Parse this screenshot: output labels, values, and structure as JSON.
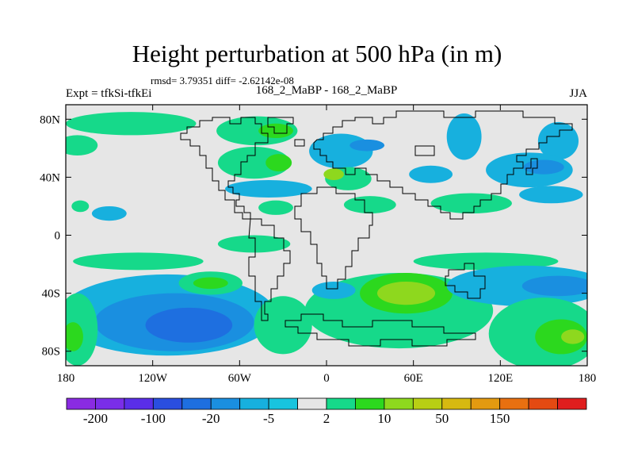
{
  "title": "Height perturbation at 500 hPa (in m)",
  "stats": "rmsd= 3.79351 diff= -2.62142e-08",
  "left_label": "Expt = tfkSi-tfkEi",
  "center_label": "168_2_MaBP - 168_2_MaBP",
  "right_label": "JJA",
  "chart_data": {
    "type": "heatmap",
    "title": "Height perturbation at 500 hPa (in m)",
    "xlabel": "",
    "ylabel": "",
    "xlim": [
      -180,
      180
    ],
    "ylim": [
      -90,
      90
    ],
    "x_ticks": [
      {
        "value": -180,
        "label": "180"
      },
      {
        "value": -120,
        "label": "120W"
      },
      {
        "value": -60,
        "label": "60W"
      },
      {
        "value": 0,
        "label": "0"
      },
      {
        "value": 60,
        "label": "60E"
      },
      {
        "value": 120,
        "label": "120E"
      },
      {
        "value": 180,
        "label": "180"
      }
    ],
    "y_ticks": [
      {
        "value": 80,
        "label": "80N"
      },
      {
        "value": 40,
        "label": "40N"
      },
      {
        "value": 0,
        "label": "0"
      },
      {
        "value": -40,
        "label": "40S"
      },
      {
        "value": -80,
        "label": "80S"
      }
    ],
    "colorbar": {
      "colors": [
        "#8a2be2",
        "#7a2ee8",
        "#5a2ee8",
        "#2a4ee0",
        "#1e6fe0",
        "#1a8fe0",
        "#17b0de",
        "#18c4de",
        "#e6e6e6",
        "#16d98a",
        "#2cd81e",
        "#8ed81e",
        "#b8cf14",
        "#d7b910",
        "#e39a10",
        "#e87010",
        "#e44a12",
        "#e01e1e"
      ],
      "labels": [
        {
          "value": -200,
          "label": "-200",
          "after_box": 1
        },
        {
          "value": -100,
          "label": "-100",
          "after_box": 3
        },
        {
          "value": -20,
          "label": "-20",
          "after_box": 5
        },
        {
          "value": -5,
          "label": "-5",
          "after_box": 7
        },
        {
          "value": 2,
          "label": "2",
          "after_box": 9
        },
        {
          "value": 10,
          "label": "10",
          "after_box": 11
        },
        {
          "value": 50,
          "label": "50",
          "after_box": 13
        },
        {
          "value": 150,
          "label": "150",
          "after_box": 15
        }
      ]
    },
    "regions": [
      {
        "lon": -172,
        "lat": 62,
        "rlon": 14,
        "rlat": 7,
        "color": "#16d98a"
      },
      {
        "lon": -135,
        "lat": 77,
        "rlon": 45,
        "rlat": 8,
        "color": "#16d98a"
      },
      {
        "lon": -48,
        "lat": 72,
        "rlon": 28,
        "rlat": 10,
        "color": "#16d98a"
      },
      {
        "lon": -35,
        "lat": 72,
        "rlon": 12,
        "rlat": 5,
        "color": "#2cd81e"
      },
      {
        "lon": -50,
        "lat": 50,
        "rlon": 25,
        "rlat": 11,
        "color": "#16d98a"
      },
      {
        "lon": -33,
        "lat": 50,
        "rlon": 9,
        "rlat": 6,
        "color": "#2cd81e"
      },
      {
        "lon": 10,
        "lat": 58,
        "rlon": 22,
        "rlat": 12,
        "color": "#17b0de"
      },
      {
        "lon": 28,
        "lat": 62,
        "rlon": 12,
        "rlat": 4,
        "color": "#1a8fe0"
      },
      {
        "lon": 15,
        "lat": 39,
        "rlon": 16,
        "rlat": 8,
        "color": "#16d98a"
      },
      {
        "lon": 5,
        "lat": 42,
        "rlon": 7,
        "rlat": 4,
        "color": "#8ed81e"
      },
      {
        "lon": -40,
        "lat": 32,
        "rlon": 30,
        "rlat": 6,
        "color": "#17b0de"
      },
      {
        "lon": -150,
        "lat": 15,
        "rlon": 12,
        "rlat": 5,
        "color": "#17b0de"
      },
      {
        "lon": -170,
        "lat": 20,
        "rlon": 6,
        "rlat": 4,
        "color": "#16d98a"
      },
      {
        "lon": -35,
        "lat": 19,
        "rlon": 12,
        "rlat": 5,
        "color": "#16d98a"
      },
      {
        "lon": 30,
        "lat": 21,
        "rlon": 18,
        "rlat": 6,
        "color": "#16d98a"
      },
      {
        "lon": 100,
        "lat": 22,
        "rlon": 28,
        "rlat": 7,
        "color": "#16d98a"
      },
      {
        "lon": 95,
        "lat": 68,
        "rlon": 12,
        "rlat": 16,
        "color": "#17b0de"
      },
      {
        "lon": 160,
        "lat": 65,
        "rlon": 14,
        "rlat": 13,
        "color": "#17b0de"
      },
      {
        "lon": 140,
        "lat": 45,
        "rlon": 30,
        "rlat": 12,
        "color": "#17b0de"
      },
      {
        "lon": 150,
        "lat": 47,
        "rlon": 14,
        "rlat": 5,
        "color": "#1a8fe0"
      },
      {
        "lon": 155,
        "lat": 28,
        "rlon": 22,
        "rlat": 6,
        "color": "#17b0de"
      },
      {
        "lon": 72,
        "lat": 42,
        "rlon": 15,
        "rlat": 6,
        "color": "#17b0de"
      },
      {
        "lon": -50,
        "lat": -6,
        "rlon": 25,
        "rlat": 6,
        "color": "#16d98a"
      },
      {
        "lon": -130,
        "lat": -18,
        "rlon": 45,
        "rlat": 6,
        "color": "#16d98a"
      },
      {
        "lon": 110,
        "lat": -18,
        "rlon": 50,
        "rlat": 6,
        "color": "#16d98a"
      },
      {
        "lon": -110,
        "lat": -55,
        "rlon": 75,
        "rlat": 28,
        "color": "#17b0de"
      },
      {
        "lon": -105,
        "lat": -60,
        "rlon": 55,
        "rlat": 20,
        "color": "#1a8fe0"
      },
      {
        "lon": -95,
        "lat": -62,
        "rlon": 30,
        "rlat": 12,
        "color": "#1e6fe0"
      },
      {
        "lon": -30,
        "lat": -62,
        "rlon": 20,
        "rlat": 20,
        "color": "#16d98a"
      },
      {
        "lon": 50,
        "lat": -52,
        "rlon": 65,
        "rlat": 26,
        "color": "#16d98a"
      },
      {
        "lon": 55,
        "lat": -40,
        "rlon": 32,
        "rlat": 14,
        "color": "#2cd81e"
      },
      {
        "lon": 55,
        "lat": -40,
        "rlon": 20,
        "rlat": 8,
        "color": "#8ed81e"
      },
      {
        "lon": -80,
        "lat": -33,
        "rlon": 22,
        "rlat": 8,
        "color": "#16d98a"
      },
      {
        "lon": -80,
        "lat": -33,
        "rlon": 12,
        "rlat": 4,
        "color": "#2cd81e"
      },
      {
        "lon": 5,
        "lat": -38,
        "rlon": 15,
        "rlat": 6,
        "color": "#17b0de"
      },
      {
        "lon": 138,
        "lat": -35,
        "rlon": 55,
        "rlat": 14,
        "color": "#17b0de"
      },
      {
        "lon": 160,
        "lat": -35,
        "rlon": 25,
        "rlat": 7,
        "color": "#1a8fe0"
      },
      {
        "lon": 150,
        "lat": -68,
        "rlon": 38,
        "rlat": 25,
        "color": "#16d98a"
      },
      {
        "lon": 162,
        "lat": -70,
        "rlon": 18,
        "rlat": 12,
        "color": "#2cd81e"
      },
      {
        "lon": 170,
        "lat": -70,
        "rlon": 8,
        "rlat": 5,
        "color": "#8ed81e"
      },
      {
        "lon": -172,
        "lat": -65,
        "rlon": 14,
        "rlat": 25,
        "color": "#16d98a"
      },
      {
        "lon": -175,
        "lat": -70,
        "rlon": 7,
        "rlat": 10,
        "color": "#2cd81e"
      }
    ]
  }
}
